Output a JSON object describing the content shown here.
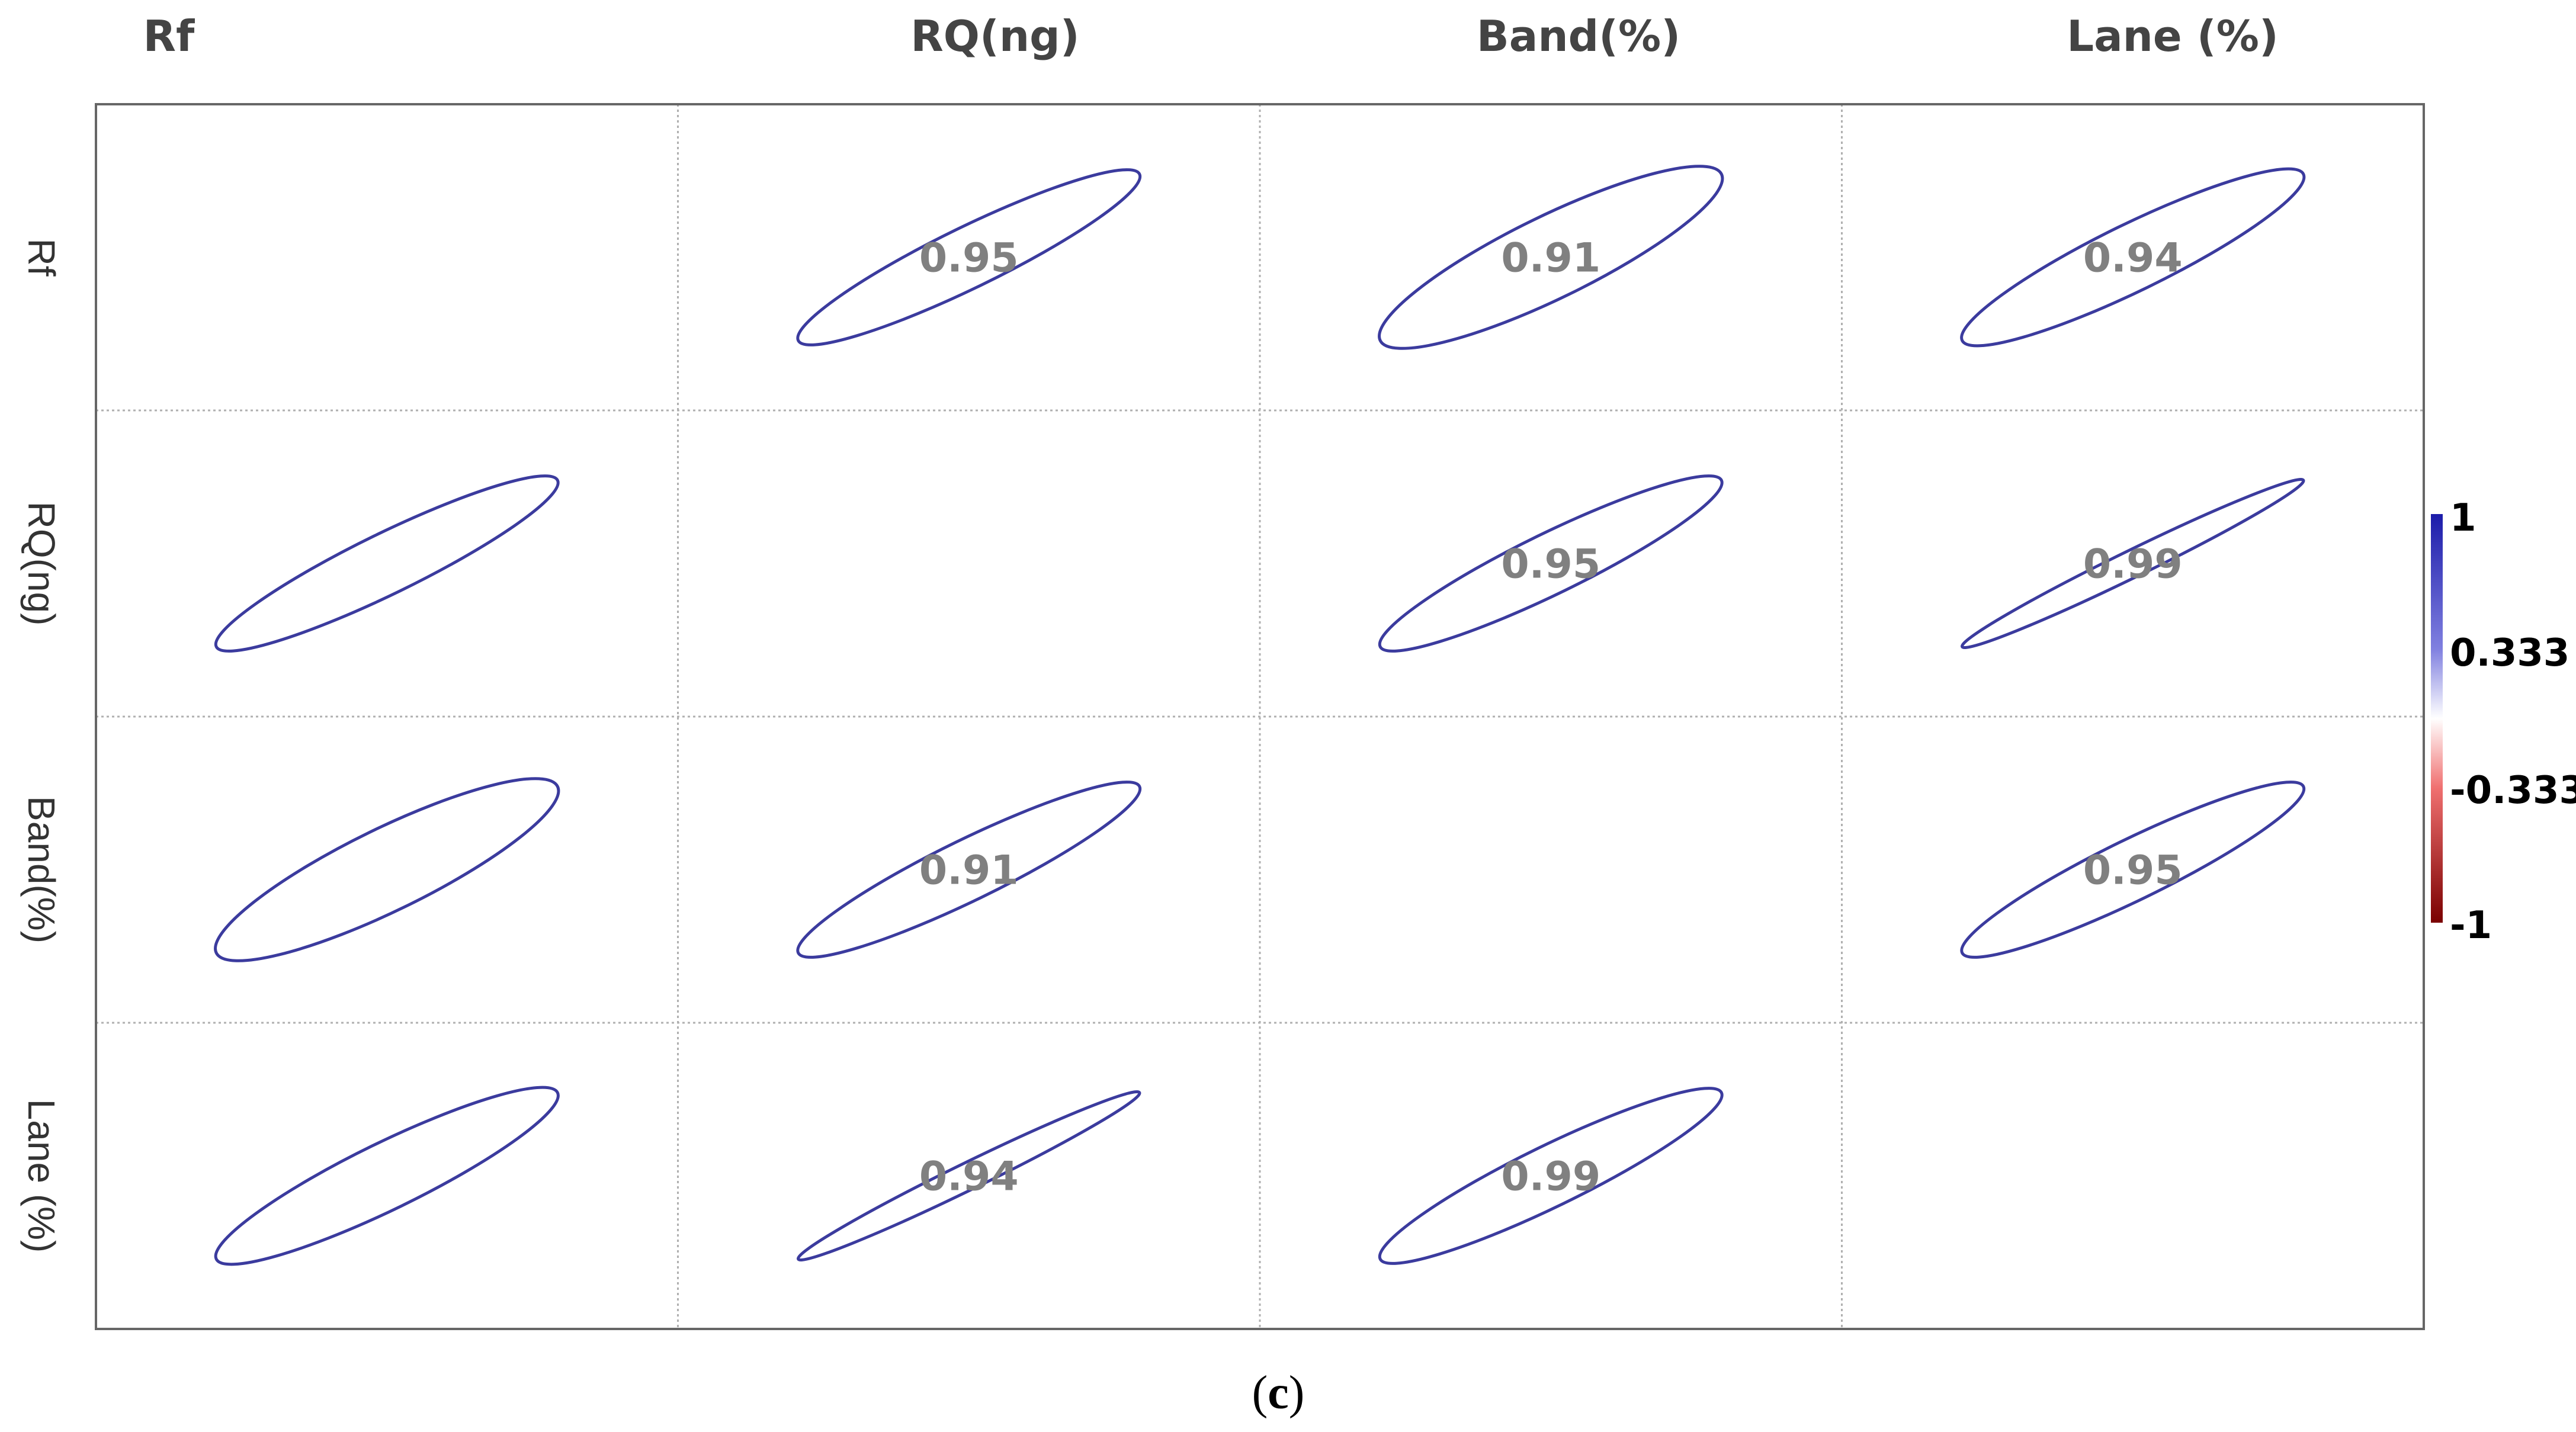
{
  "chart_data": {
    "type": "heatmap",
    "variables": [
      "Rf",
      "RQ(ng)",
      "Band(%)",
      "Lane (%)"
    ],
    "row_labels": [
      "Rf",
      "RQ(ng)",
      "Band(%)",
      "Lane (%)"
    ],
    "matrix": [
      [
        null,
        0.95,
        0.91,
        0.94
      ],
      [
        0.95,
        null,
        0.95,
        0.99
      ],
      [
        0.91,
        0.95,
        null,
        0.95
      ],
      [
        0.94,
        0.99,
        0.95,
        null
      ]
    ],
    "value_labels": [
      [
        null,
        "0.95",
        "0.91",
        "0.94"
      ],
      [
        null,
        "0.95",
        "0.95",
        "0.99"
      ],
      [
        null,
        "0.91",
        "0.95",
        "0.95"
      ],
      [
        null,
        "0.94",
        "0.99",
        "0.95"
      ]
    ],
    "colorbar": {
      "ticks": [
        "1",
        "0.333",
        "-0.333",
        "-1"
      ],
      "range": [
        -1,
        1
      ],
      "colors": {
        "high": "#1a1aa8",
        "mid": "#ffffff",
        "low": "#8b0000",
        "neg": "#e02020"
      }
    },
    "ellipse_color": "#3b3b9e",
    "grid": true,
    "caption": {
      "open": "(",
      "letter": "c",
      "close": ")"
    }
  }
}
